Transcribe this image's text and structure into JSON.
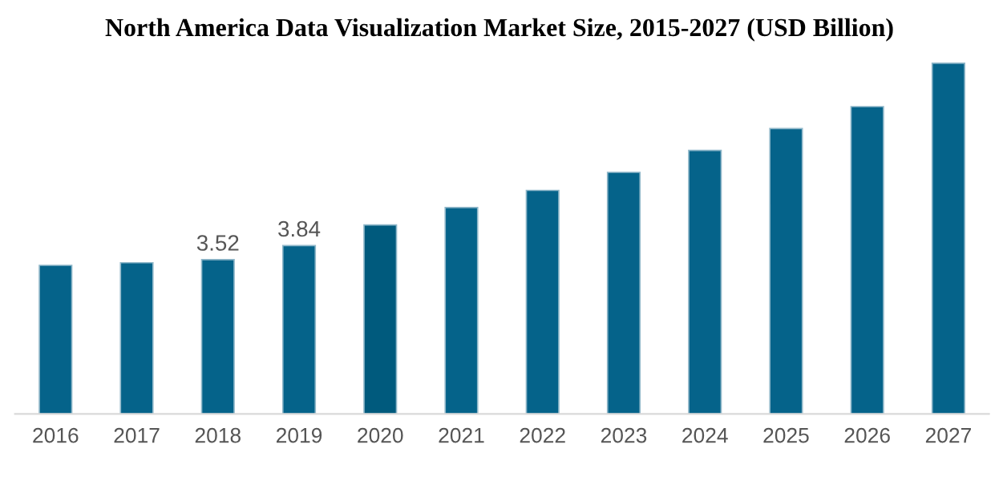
{
  "chart_data": {
    "type": "bar",
    "title": "North America Data Visualization Market Size, 2015-2027 (USD Billion)",
    "categories": [
      "2016",
      "2017",
      "2018",
      "2019",
      "2020",
      "2021",
      "2022",
      "2023",
      "2024",
      "2025",
      "2026",
      "2027"
    ],
    "values": [
      3.39,
      3.45,
      3.52,
      3.84,
      4.31,
      4.71,
      5.1,
      5.51,
      6.01,
      6.51,
      7.01,
      8.0
    ],
    "value_labels": [
      null,
      null,
      "3.52",
      "3.84",
      null,
      null,
      null,
      null,
      null,
      null,
      null,
      null
    ],
    "colors": [
      "#05638a",
      "#05638a",
      "#05638a",
      "#05638a",
      "#005a7d",
      "#05638a",
      "#05638a",
      "#05638a",
      "#05638a",
      "#05638a",
      "#05638a",
      "#05638a"
    ],
    "grid": false,
    "legend": false
  }
}
